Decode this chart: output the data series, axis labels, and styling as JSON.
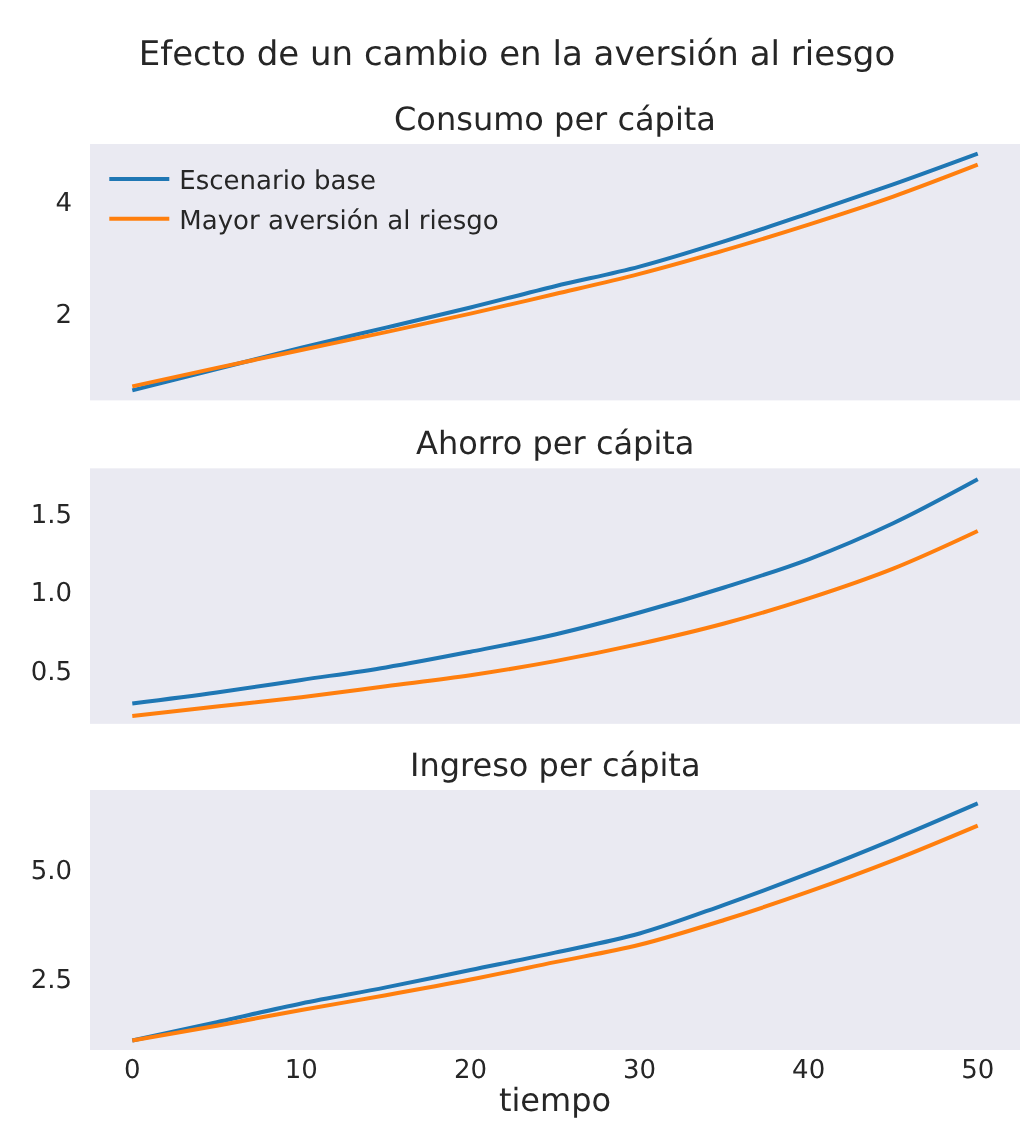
{
  "chart_data": [
    {
      "type": "line",
      "title": "Efecto de un cambio en la aversión al riesgo",
      "subtitle": "Consumo per cápita",
      "x": [
        0,
        5,
        10,
        15,
        20,
        25,
        30,
        35,
        40,
        45,
        50
      ],
      "xlim": [
        -2.5,
        52.5
      ],
      "xticks": [
        0,
        10,
        20,
        30,
        40,
        50
      ],
      "ylim": [
        0.46,
        5.04
      ],
      "yticks": [
        2,
        4
      ],
      "tick_labels": "y",
      "legend": "top left",
      "series": [
        {
          "name": "Escenario base",
          "color": "#1f77b4",
          "values": [
            0.64,
            1.02,
            1.4,
            1.76,
            2.12,
            2.5,
            2.85,
            3.3,
            3.8,
            4.32,
            4.87
          ]
        },
        {
          "name": "Mayor aversión al riesgo",
          "color": "#ff7f0e",
          "values": [
            0.71,
            1.04,
            1.36,
            1.68,
            2.01,
            2.36,
            2.72,
            3.14,
            3.6,
            4.1,
            4.67
          ]
        }
      ]
    },
    {
      "type": "line",
      "title": "Ahorro per cápita",
      "x": [
        0,
        5,
        10,
        15,
        20,
        25,
        30,
        35,
        40,
        45,
        50
      ],
      "xlim": [
        -2.5,
        52.5
      ],
      "xticks": [
        0,
        10,
        20,
        30,
        40,
        50
      ],
      "ylim": [
        0.16,
        1.79
      ],
      "yticks": [
        0.5,
        {
          "value": 1,
          "label": "1.0"
        },
        1.5
      ],
      "tick_labels": "y",
      "series": [
        {
          "color": "#1f77b4",
          "values": [
            0.29,
            0.36,
            0.44,
            0.52,
            0.62,
            0.73,
            0.87,
            1.03,
            1.21,
            1.44,
            1.72
          ]
        },
        {
          "color": "#ff7f0e",
          "values": [
            0.21,
            0.27,
            0.33,
            0.4,
            0.47,
            0.56,
            0.67,
            0.8,
            0.96,
            1.15,
            1.39
          ]
        }
      ]
    },
    {
      "type": "line",
      "title": "Ingreso per cápita",
      "xlabel": "tiempo",
      "x": [
        0,
        5,
        10,
        15,
        20,
        25,
        30,
        35,
        40,
        45,
        50
      ],
      "xlim": [
        -2.5,
        52.5
      ],
      "xticks": [
        0,
        10,
        20,
        30,
        40,
        50
      ],
      "ylim": [
        0.86,
        6.84
      ],
      "yticks": [
        2.5,
        {
          "value": 5,
          "label": "5.0"
        }
      ],
      "series": [
        {
          "color": "#1f77b4",
          "values": [
            1.08,
            1.5,
            1.93,
            2.3,
            2.7,
            3.1,
            3.54,
            4.2,
            4.92,
            5.7,
            6.53
          ]
        },
        {
          "color": "#ff7f0e",
          "values": [
            1.08,
            1.42,
            1.78,
            2.12,
            2.48,
            2.88,
            3.28,
            3.85,
            4.5,
            5.22,
            6.02
          ]
        }
      ]
    }
  ]
}
